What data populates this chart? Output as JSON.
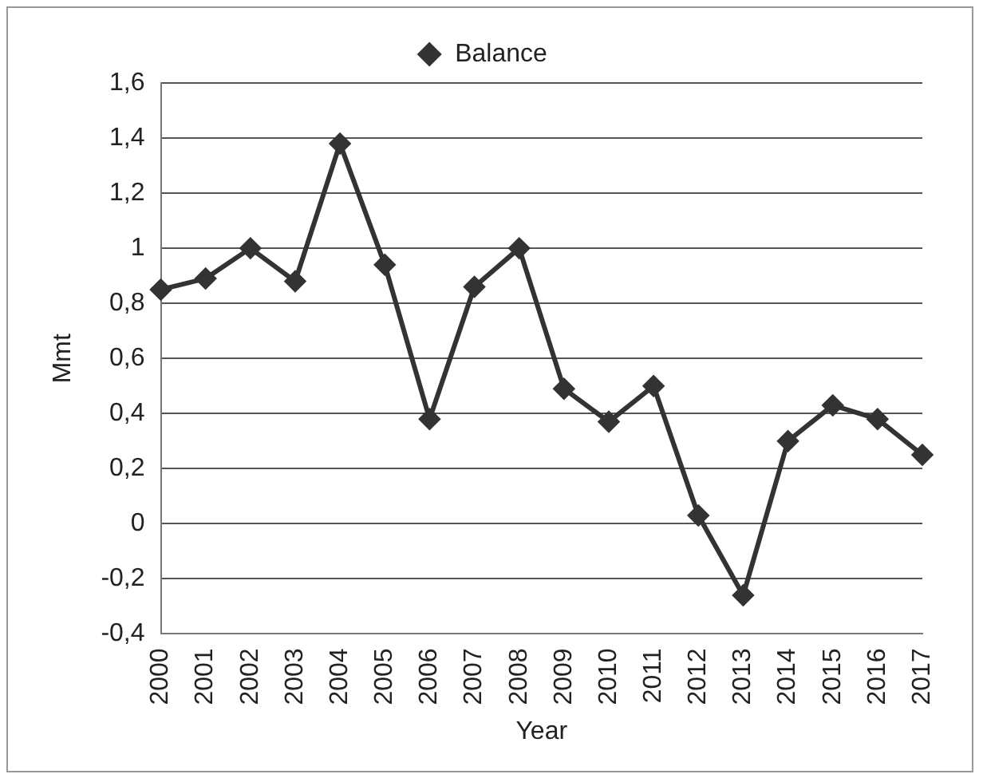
{
  "chart_data": {
    "type": "line",
    "xlabel": "Year",
    "ylabel": "Mmt",
    "categories": [
      "2000",
      "2001",
      "2002",
      "2003",
      "2004",
      "2005",
      "2006",
      "2007",
      "2008",
      "2009",
      "2010",
      "2011",
      "2012",
      "2013",
      "2014",
      "2015",
      "2016",
      "2017"
    ],
    "series": [
      {
        "name": "Balance",
        "color": "#333333",
        "values": [
          0.85,
          0.89,
          1.0,
          0.88,
          1.38,
          0.94,
          0.38,
          0.86,
          1.0,
          0.49,
          0.37,
          0.5,
          0.03,
          -0.26,
          0.3,
          0.43,
          0.38,
          0.25
        ]
      }
    ],
    "ylim": [
      -0.4,
      1.6
    ],
    "yticks": [
      {
        "value": -0.4,
        "label": "-0,4"
      },
      {
        "value": -0.2,
        "label": "-0,2"
      },
      0,
      {
        "value": 0.2,
        "label": "0,2"
      },
      {
        "value": 0.4,
        "label": "0,4"
      },
      {
        "value": 0.6,
        "label": "0,6"
      },
      {
        "value": 0.8,
        "label": "0,8"
      },
      1,
      {
        "value": 1.2,
        "label": "1,2"
      },
      {
        "value": 1.4,
        "label": "1,4"
      },
      {
        "value": 1.6,
        "label": "1,6"
      }
    ],
    "grid": "y",
    "legend": "top",
    "marker": "diamond",
    "line_style": "solid"
  }
}
